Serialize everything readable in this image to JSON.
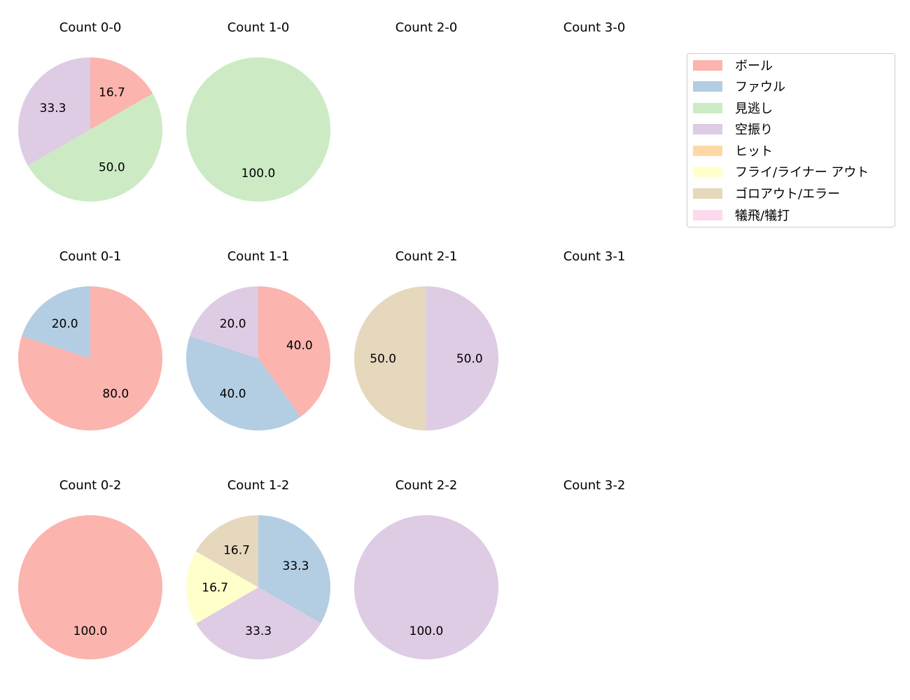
{
  "colors": {
    "ボール": "#fbb4ae",
    "ファウル": "#b3cde3",
    "見逃し": "#ccebc5",
    "空振り": "#decbe4",
    "ヒット": "#fed9a6",
    "フライ/ライナー アウト": "#ffffcc",
    "ゴロアウト/エラー": "#e5d8bd",
    "犠飛/犠打": "#fddaec"
  },
  "legend": {
    "items": [
      {
        "label": "ボール",
        "color": "#fbb4ae"
      },
      {
        "label": "ファウル",
        "color": "#b3cde3"
      },
      {
        "label": "見逃し",
        "color": "#ccebc5"
      },
      {
        "label": "空振り",
        "color": "#decbe4"
      },
      {
        "label": "ヒット",
        "color": "#fed9a6"
      },
      {
        "label": "フライ/ライナー アウト",
        "color": "#ffffcc"
      },
      {
        "label": "ゴロアウト/エラー",
        "color": "#e5d8bd"
      },
      {
        "label": "犠飛/犠打",
        "color": "#fddaec"
      }
    ]
  },
  "chart_data": {
    "type": "pie",
    "title": "",
    "start_angle": 90,
    "direction": "clockwise",
    "legend_position": "upper right",
    "categories": [
      "ボール",
      "ファウル",
      "見逃し",
      "空振り",
      "ヒット",
      "フライ/ライナー アウト",
      "ゴロアウト/エラー",
      "犠飛/犠打"
    ],
    "subplots": [
      {
        "title": "Count 0-0",
        "row": 0,
        "col": 0,
        "slices": [
          {
            "label": "ボール",
            "value": 16.7
          },
          {
            "label": "見逃し",
            "value": 50.0
          },
          {
            "label": "空振り",
            "value": 33.3
          }
        ]
      },
      {
        "title": "Count 1-0",
        "row": 0,
        "col": 1,
        "slices": [
          {
            "label": "見逃し",
            "value": 100.0
          }
        ]
      },
      {
        "title": "Count 2-0",
        "row": 0,
        "col": 2,
        "slices": []
      },
      {
        "title": "Count 3-0",
        "row": 0,
        "col": 3,
        "slices": []
      },
      {
        "title": "Count 0-1",
        "row": 1,
        "col": 0,
        "slices": [
          {
            "label": "ボール",
            "value": 80.0
          },
          {
            "label": "ファウル",
            "value": 20.0
          }
        ]
      },
      {
        "title": "Count 1-1",
        "row": 1,
        "col": 1,
        "slices": [
          {
            "label": "ボール",
            "value": 40.0
          },
          {
            "label": "ファウル",
            "value": 40.0
          },
          {
            "label": "空振り",
            "value": 20.0
          }
        ]
      },
      {
        "title": "Count 2-1",
        "row": 1,
        "col": 2,
        "slices": [
          {
            "label": "空振り",
            "value": 50.0
          },
          {
            "label": "ゴロアウト/エラー",
            "value": 50.0
          }
        ]
      },
      {
        "title": "Count 3-1",
        "row": 1,
        "col": 3,
        "slices": []
      },
      {
        "title": "Count 0-2",
        "row": 2,
        "col": 0,
        "slices": [
          {
            "label": "ボール",
            "value": 100.0
          }
        ]
      },
      {
        "title": "Count 1-2",
        "row": 2,
        "col": 1,
        "slices": [
          {
            "label": "ファウル",
            "value": 33.3
          },
          {
            "label": "空振り",
            "value": 33.3
          },
          {
            "label": "フライ/ライナー アウト",
            "value": 16.7
          },
          {
            "label": "ゴロアウト/エラー",
            "value": 16.7
          }
        ]
      },
      {
        "title": "Count 2-2",
        "row": 2,
        "col": 2,
        "slices": [
          {
            "label": "空振り",
            "value": 100.0
          }
        ]
      },
      {
        "title": "Count 3-2",
        "row": 2,
        "col": 3,
        "slices": []
      }
    ]
  }
}
